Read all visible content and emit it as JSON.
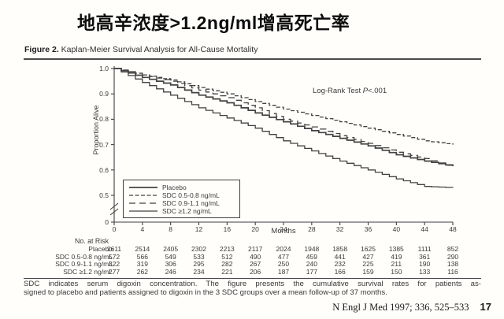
{
  "slide": {
    "title": "地高辛浓度>1.2ng/ml增高死亡率",
    "citation": "N Engl J Med 1997; 336, 525–533",
    "page_number": "17"
  },
  "figure": {
    "label": "Figure 2.",
    "caption": " Kaplan-Meier Survival Analysis for All-Cause Mortality",
    "footnote_line1": "SDC indicates serum digoxin concentration. The figure presents the cumulative survival rates for patients as-",
    "footnote_line2": "signed to placebo and patients assigned to digoxin in the 3 SDC groups over a mean follow-up of 37 months."
  },
  "chart_data": {
    "type": "line",
    "subtype": "kaplan-meier-step",
    "title": "",
    "xlabel": "Months",
    "ylabel": "Proportion Alive",
    "x_ticks": [
      0,
      4,
      8,
      12,
      16,
      20,
      24,
      28,
      32,
      36,
      40,
      44,
      48
    ],
    "y_ticks": [
      "0",
      "0.5",
      "0.6",
      "0.7",
      "0.8",
      "0.9",
      "1.0"
    ],
    "xlim": [
      0,
      48
    ],
    "ylim": [
      0.5,
      1.0
    ],
    "y_axis_break": true,
    "grid": false,
    "legend_position": "lower-left",
    "annotation": {
      "prefix": "Log-Rank Test ",
      "stat": "P",
      "value": "<.001"
    },
    "x": [
      0,
      4,
      8,
      12,
      16,
      20,
      24,
      28,
      32,
      36,
      40,
      44,
      48
    ],
    "series": [
      {
        "name": "Placebo",
        "line_style": "solid",
        "values": [
          1.0,
          0.965,
          0.935,
          0.895,
          0.865,
          0.825,
          0.79,
          0.755,
          0.725,
          0.695,
          0.66,
          0.635,
          0.615
        ]
      },
      {
        "name": "SDC 0.5-0.8 ng/mL",
        "line_style": "dash",
        "values": [
          1.0,
          0.975,
          0.955,
          0.925,
          0.9,
          0.87,
          0.84,
          0.815,
          0.79,
          0.765,
          0.74,
          0.715,
          0.7
        ]
      },
      {
        "name": "SDC 0.9-1.1 ng/mL",
        "line_style": "long-dash",
        "values": [
          1.0,
          0.975,
          0.95,
          0.915,
          0.885,
          0.845,
          0.8,
          0.77,
          0.735,
          0.705,
          0.67,
          0.645,
          0.61
        ]
      },
      {
        "name": "SDC ≥1.2 ng/mL",
        "line_style": "solid-thin",
        "values": [
          1.0,
          0.945,
          0.895,
          0.845,
          0.805,
          0.765,
          0.715,
          0.675,
          0.635,
          0.6,
          0.565,
          0.535,
          0.53
        ]
      }
    ]
  },
  "risk_table": {
    "header": "No. at Risk",
    "rows": [
      {
        "label": "Placebo",
        "values": [
          "2611",
          "2514",
          "2405",
          "2302",
          "2213",
          "2117",
          "2024",
          "1948",
          "1858",
          "1625",
          "1385",
          "1111",
          "852"
        ]
      },
      {
        "label": "SDC 0.5-0.8 ng/mL",
        "values": [
          "572",
          "566",
          "549",
          "533",
          "512",
          "490",
          "477",
          "459",
          "441",
          "427",
          "419",
          "361",
          "290"
        ]
      },
      {
        "label": "SDC 0.9-1.1 ng/mL",
        "values": [
          "322",
          "319",
          "306",
          "295",
          "282",
          "267",
          "250",
          "240",
          "232",
          "225",
          "211",
          "190",
          "138"
        ]
      },
      {
        "label": "SDC ≥1.2 ng/mL",
        "values": [
          "277",
          "262",
          "246",
          "234",
          "221",
          "206",
          "187",
          "177",
          "166",
          "159",
          "150",
          "133",
          "116"
        ]
      }
    ]
  },
  "colors": {
    "ink": "#3a3a3a",
    "curve": "#424242",
    "title": "#0d0d0d"
  }
}
